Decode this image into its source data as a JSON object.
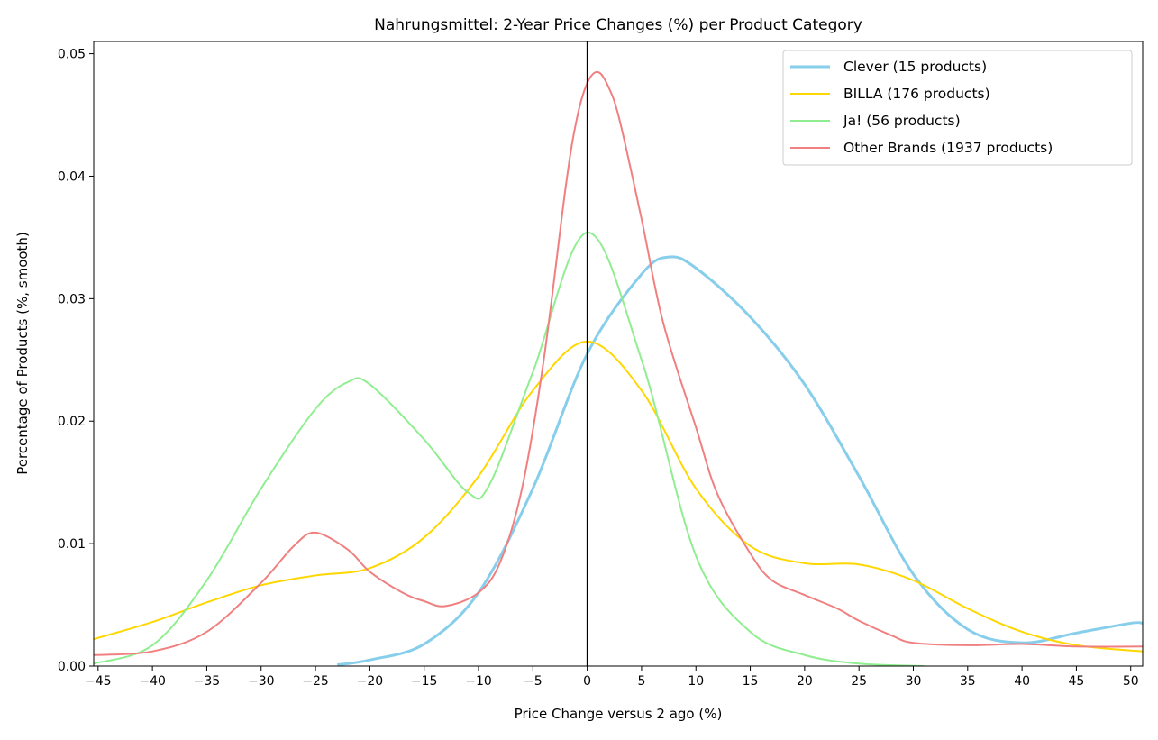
{
  "chart_data": {
    "type": "line",
    "title": "Nahrungsmittel: 2-Year Price Changes (%) per Product Category",
    "xlabel": "Price Change versus 2 ago (%)",
    "ylabel": "Percentage of Products (%, smooth)",
    "xlim": [
      -45.4,
      51.1
    ],
    "ylim": [
      0,
      0.051
    ],
    "xticks": [
      -45,
      -40,
      -35,
      -30,
      -25,
      -20,
      -15,
      -10,
      -5,
      0,
      5,
      10,
      15,
      20,
      25,
      30,
      35,
      40,
      45,
      50
    ],
    "yticks": [
      0.0,
      0.01,
      0.02,
      0.03,
      0.04,
      0.05
    ],
    "ytick_labels": [
      "0.00",
      "0.01",
      "0.02",
      "0.03",
      "0.04",
      "0.05"
    ],
    "vertical_line_x": 0,
    "grid": false,
    "legend_position": "top-right",
    "series": [
      {
        "name": "Clever (15 products)",
        "color": "#87CEEB",
        "width": 3,
        "x": [
          -23,
          -20,
          -15,
          -10,
          -5,
          0,
          5,
          7.5,
          10,
          15,
          20,
          25,
          30,
          35,
          40,
          45,
          50,
          51.1
        ],
        "y": [
          0.0001,
          0.0005,
          0.0018,
          0.006,
          0.0145,
          0.0255,
          0.032,
          0.0334,
          0.0325,
          0.0285,
          0.023,
          0.0155,
          0.0075,
          0.003,
          0.0019,
          0.0027,
          0.0035,
          0.0035
        ]
      },
      {
        "name": "BILLA (176 products)",
        "color": "#FFD700",
        "width": 2,
        "x": [
          -45.4,
          -40,
          -35,
          -30,
          -25,
          -20,
          -15,
          -10,
          -5,
          0,
          5,
          10,
          15,
          20,
          25,
          30,
          35,
          40,
          45,
          51.1
        ],
        "y": [
          0.0022,
          0.0036,
          0.0052,
          0.0066,
          0.0074,
          0.008,
          0.0105,
          0.0155,
          0.0225,
          0.0265,
          0.0225,
          0.0145,
          0.0098,
          0.0084,
          0.0083,
          0.007,
          0.0047,
          0.0028,
          0.0017,
          0.0012
        ]
      },
      {
        "name": "Ja! (56 products)",
        "color": "#90EE90",
        "width": 2,
        "x": [
          -45.4,
          -40,
          -35,
          -30,
          -25,
          -22,
          -20,
          -15,
          -11,
          -9,
          -5,
          0,
          5,
          10,
          15,
          20,
          25,
          31
        ],
        "y": [
          0.0002,
          0.0017,
          0.007,
          0.0145,
          0.021,
          0.0232,
          0.023,
          0.0185,
          0.0142,
          0.0148,
          0.024,
          0.0354,
          0.025,
          0.009,
          0.0028,
          0.0009,
          0.0002,
          0.0
        ]
      },
      {
        "name": "Other Brands (1937 products)",
        "color": "#F08080",
        "width": 2,
        "x": [
          -45.4,
          -40,
          -35,
          -30,
          -27,
          -25,
          -22,
          -20,
          -17,
          -15,
          -13,
          -10,
          -8,
          -6,
          -4,
          -2,
          -1,
          0,
          1,
          2,
          3,
          5,
          7,
          10,
          12,
          15,
          17,
          20,
          23,
          25,
          28,
          30,
          35,
          40,
          45,
          51.1
        ],
        "y": [
          0.0009,
          0.0012,
          0.0028,
          0.0068,
          0.0098,
          0.0109,
          0.0095,
          0.0077,
          0.006,
          0.0053,
          0.0049,
          0.006,
          0.0085,
          0.0145,
          0.025,
          0.039,
          0.0445,
          0.0476,
          0.0485,
          0.0472,
          0.0445,
          0.0365,
          0.028,
          0.0195,
          0.014,
          0.0092,
          0.007,
          0.0058,
          0.0047,
          0.0037,
          0.0025,
          0.0019,
          0.0017,
          0.0018,
          0.0016,
          0.0016
        ]
      }
    ]
  }
}
